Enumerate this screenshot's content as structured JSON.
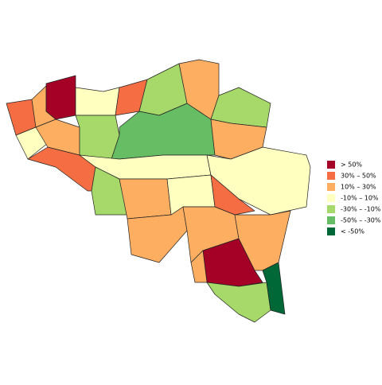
{
  "legend": {
    "items": [
      {
        "label": "> 50%",
        "color": "#a50026"
      },
      {
        "label": "30%  –  50%",
        "color": "#f46d43"
      },
      {
        "label": "10%  –  30%",
        "color": "#fdae61"
      },
      {
        "label": "-10%  –  10%",
        "color": "#ffffbf"
      },
      {
        "label": "-30%  –  -10%",
        "color": "#a6d96a"
      },
      {
        "label": "-50%  –  -30%",
        "color": "#66bd63"
      },
      {
        "label": "< -50%",
        "color": "#006837"
      }
    ]
  }
}
